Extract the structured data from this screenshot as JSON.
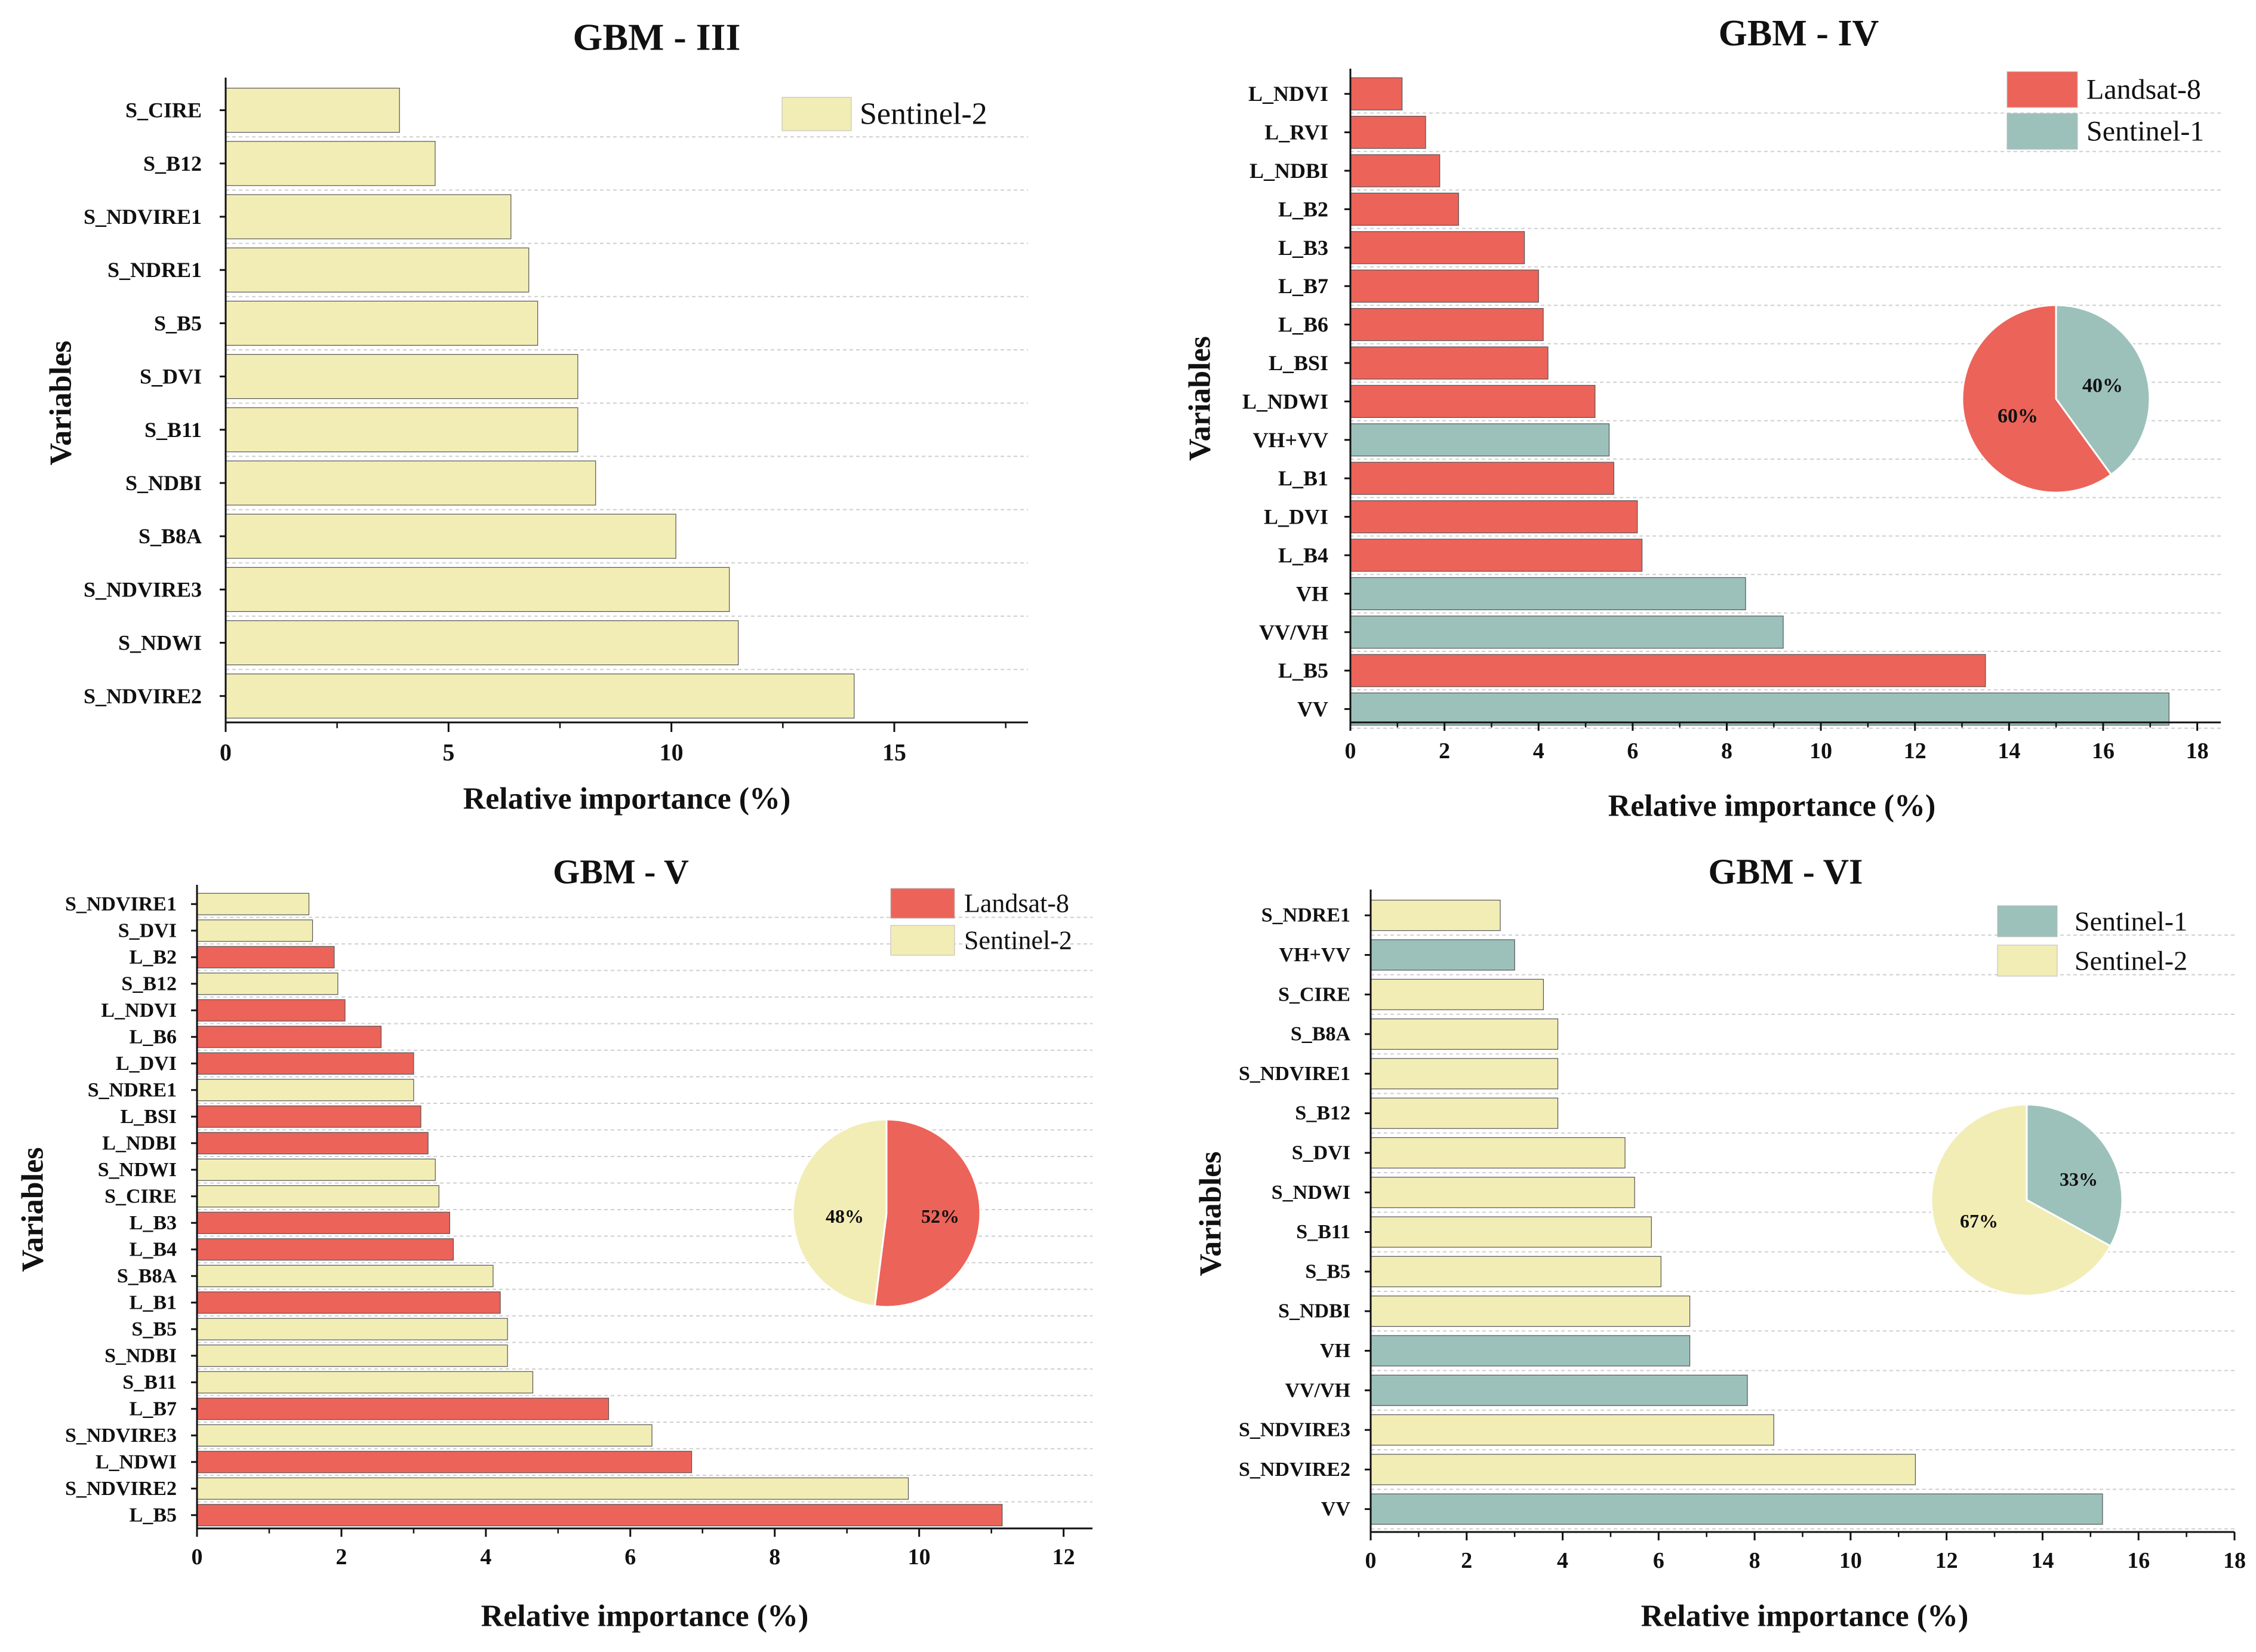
{
  "colors": {
    "landsat": "#EC6359",
    "sentinel1": "#9CC1BB",
    "sentinel2": "#F2EDB5",
    "grid": "#cfcfcf",
    "axis": "#111111"
  },
  "chart_data": [
    {
      "type": "bar",
      "orientation": "horizontal",
      "title": "GBM - III",
      "xlabel": "Relative importance (%)",
      "ylabel": "Variables",
      "xlim": [
        0,
        18
      ],
      "xticks": [
        0,
        5,
        10,
        15
      ],
      "categories": [
        "S_CIRE",
        "S_B12",
        "S_NDVIRE1",
        "S_NDRE1",
        "S_B5",
        "S_DVI",
        "S_B11",
        "S_NDBI",
        "S_B8A",
        "S_NDVIRE3",
        "S_NDWI",
        "S_NDVIRE2"
      ],
      "values": [
        3.9,
        4.7,
        6.4,
        6.8,
        7.0,
        7.9,
        7.9,
        8.3,
        10.1,
        11.3,
        11.5,
        14.1
      ],
      "groups": [
        "sentinel2",
        "sentinel2",
        "sentinel2",
        "sentinel2",
        "sentinel2",
        "sentinel2",
        "sentinel2",
        "sentinel2",
        "sentinel2",
        "sentinel2",
        "sentinel2",
        "sentinel2"
      ],
      "legend": [
        {
          "label": "Sentinel-2",
          "color": "sentinel2"
        }
      ],
      "legend_position": "top-right",
      "pie": null
    },
    {
      "type": "bar",
      "orientation": "horizontal",
      "title": "GBM - IV",
      "xlabel": "Relative importance (%)",
      "ylabel": "Variables",
      "xlim": [
        0,
        18.5
      ],
      "xticks": [
        0,
        2,
        4,
        6,
        8,
        10,
        12,
        14,
        16,
        18
      ],
      "categories": [
        "L_NDVI",
        "L_RVI",
        "L_NDBI",
        "L_B2",
        "L_B3",
        "L_B7",
        "L_B6",
        "L_BSI",
        "L_NDWI",
        "VH+VV",
        "L_B1",
        "L_DVI",
        "L_B4",
        "VH",
        "VV/VH",
        "L_B5",
        "VV"
      ],
      "values": [
        1.1,
        1.6,
        1.9,
        2.3,
        3.7,
        4.0,
        4.1,
        4.2,
        5.2,
        5.5,
        5.6,
        6.1,
        6.2,
        8.4,
        9.2,
        13.5,
        17.4
      ],
      "groups": [
        "landsat",
        "landsat",
        "landsat",
        "landsat",
        "landsat",
        "landsat",
        "landsat",
        "landsat",
        "landsat",
        "sentinel1",
        "landsat",
        "landsat",
        "landsat",
        "sentinel1",
        "sentinel1",
        "landsat",
        "sentinel1"
      ],
      "legend": [
        {
          "label": "Landsat-8",
          "color": "landsat"
        },
        {
          "label": "Sentinel-1",
          "color": "sentinel1"
        }
      ],
      "legend_position": "top-right",
      "pie": {
        "slices": [
          {
            "label": "40%",
            "value": 40,
            "color": "sentinel1"
          },
          {
            "label": "60%",
            "value": 60,
            "color": "landsat"
          }
        ]
      }
    },
    {
      "type": "bar",
      "orientation": "horizontal",
      "title": "GBM - V",
      "xlabel": "Relative importance (%)",
      "ylabel": "Variables",
      "xlim": [
        0,
        12.4
      ],
      "xticks": [
        0,
        2,
        4,
        6,
        8,
        10,
        12
      ],
      "categories": [
        "S_NDVIRE1",
        "S_DVI",
        "L_B2",
        "S_B12",
        "L_NDVI",
        "L_B6",
        "L_DVI",
        "S_NDRE1",
        "L_BSI",
        "L_NDBI",
        "S_NDWI",
        "S_CIRE",
        "L_B3",
        "L_B4",
        "S_B8A",
        "L_B1",
        "S_B5",
        "S_NDBI",
        "S_B11",
        "L_B7",
        "S_NDVIRE3",
        "L_NDWI",
        "S_NDVIRE2",
        "L_B5"
      ],
      "values": [
        1.55,
        1.6,
        1.9,
        1.95,
        2.05,
        2.55,
        3.0,
        3.0,
        3.1,
        3.2,
        3.3,
        3.35,
        3.5,
        3.55,
        4.1,
        4.2,
        4.3,
        4.3,
        4.65,
        5.7,
        6.3,
        6.85,
        9.85,
        11.15
      ],
      "groups": [
        "sentinel2",
        "sentinel2",
        "landsat",
        "sentinel2",
        "landsat",
        "landsat",
        "landsat",
        "sentinel2",
        "landsat",
        "landsat",
        "sentinel2",
        "sentinel2",
        "landsat",
        "landsat",
        "sentinel2",
        "landsat",
        "sentinel2",
        "sentinel2",
        "sentinel2",
        "landsat",
        "sentinel2",
        "landsat",
        "sentinel2",
        "landsat"
      ],
      "legend": [
        {
          "label": "Landsat-8",
          "color": "landsat"
        },
        {
          "label": "Sentinel-2",
          "color": "sentinel2"
        }
      ],
      "legend_position": "top-right",
      "pie": {
        "slices": [
          {
            "label": "52%",
            "value": 52,
            "color": "landsat"
          },
          {
            "label": "48%",
            "value": 48,
            "color": "sentinel2"
          }
        ]
      }
    },
    {
      "type": "bar",
      "orientation": "horizontal",
      "title": "GBM - VI",
      "xlabel": "Relative importance (%)",
      "ylabel": "Variables",
      "xlim": [
        0,
        18
      ],
      "xticks": [
        0,
        2,
        4,
        6,
        8,
        10,
        12,
        14,
        16,
        18
      ],
      "categories": [
        "S_NDRE1",
        "VH+VV",
        "S_CIRE",
        "S_B8A",
        "S_NDVIRE1",
        "S_B12",
        "S_DVI",
        "S_NDWI",
        "S_B11",
        "S_B5",
        "S_NDBI",
        "VH",
        "VV/VH",
        "S_NDVIRE3",
        "S_NDVIRE2",
        "VV"
      ],
      "values": [
        2.7,
        3.0,
        3.6,
        3.9,
        3.9,
        3.9,
        5.3,
        5.5,
        5.85,
        6.05,
        6.65,
        6.65,
        7.85,
        8.4,
        11.35,
        15.25
      ],
      "groups": [
        "sentinel2",
        "sentinel1",
        "sentinel2",
        "sentinel2",
        "sentinel2",
        "sentinel2",
        "sentinel2",
        "sentinel2",
        "sentinel2",
        "sentinel2",
        "sentinel2",
        "sentinel1",
        "sentinel1",
        "sentinel2",
        "sentinel2",
        "sentinel1"
      ],
      "legend": [
        {
          "label": "Sentinel-1",
          "color": "sentinel1"
        },
        {
          "label": "Sentinel-2",
          "color": "sentinel2"
        }
      ],
      "legend_position": "top-right",
      "pie": {
        "slices": [
          {
            "label": "33%",
            "value": 33,
            "color": "sentinel1"
          },
          {
            "label": "67%",
            "value": 67,
            "color": "sentinel2"
          }
        ]
      }
    }
  ]
}
